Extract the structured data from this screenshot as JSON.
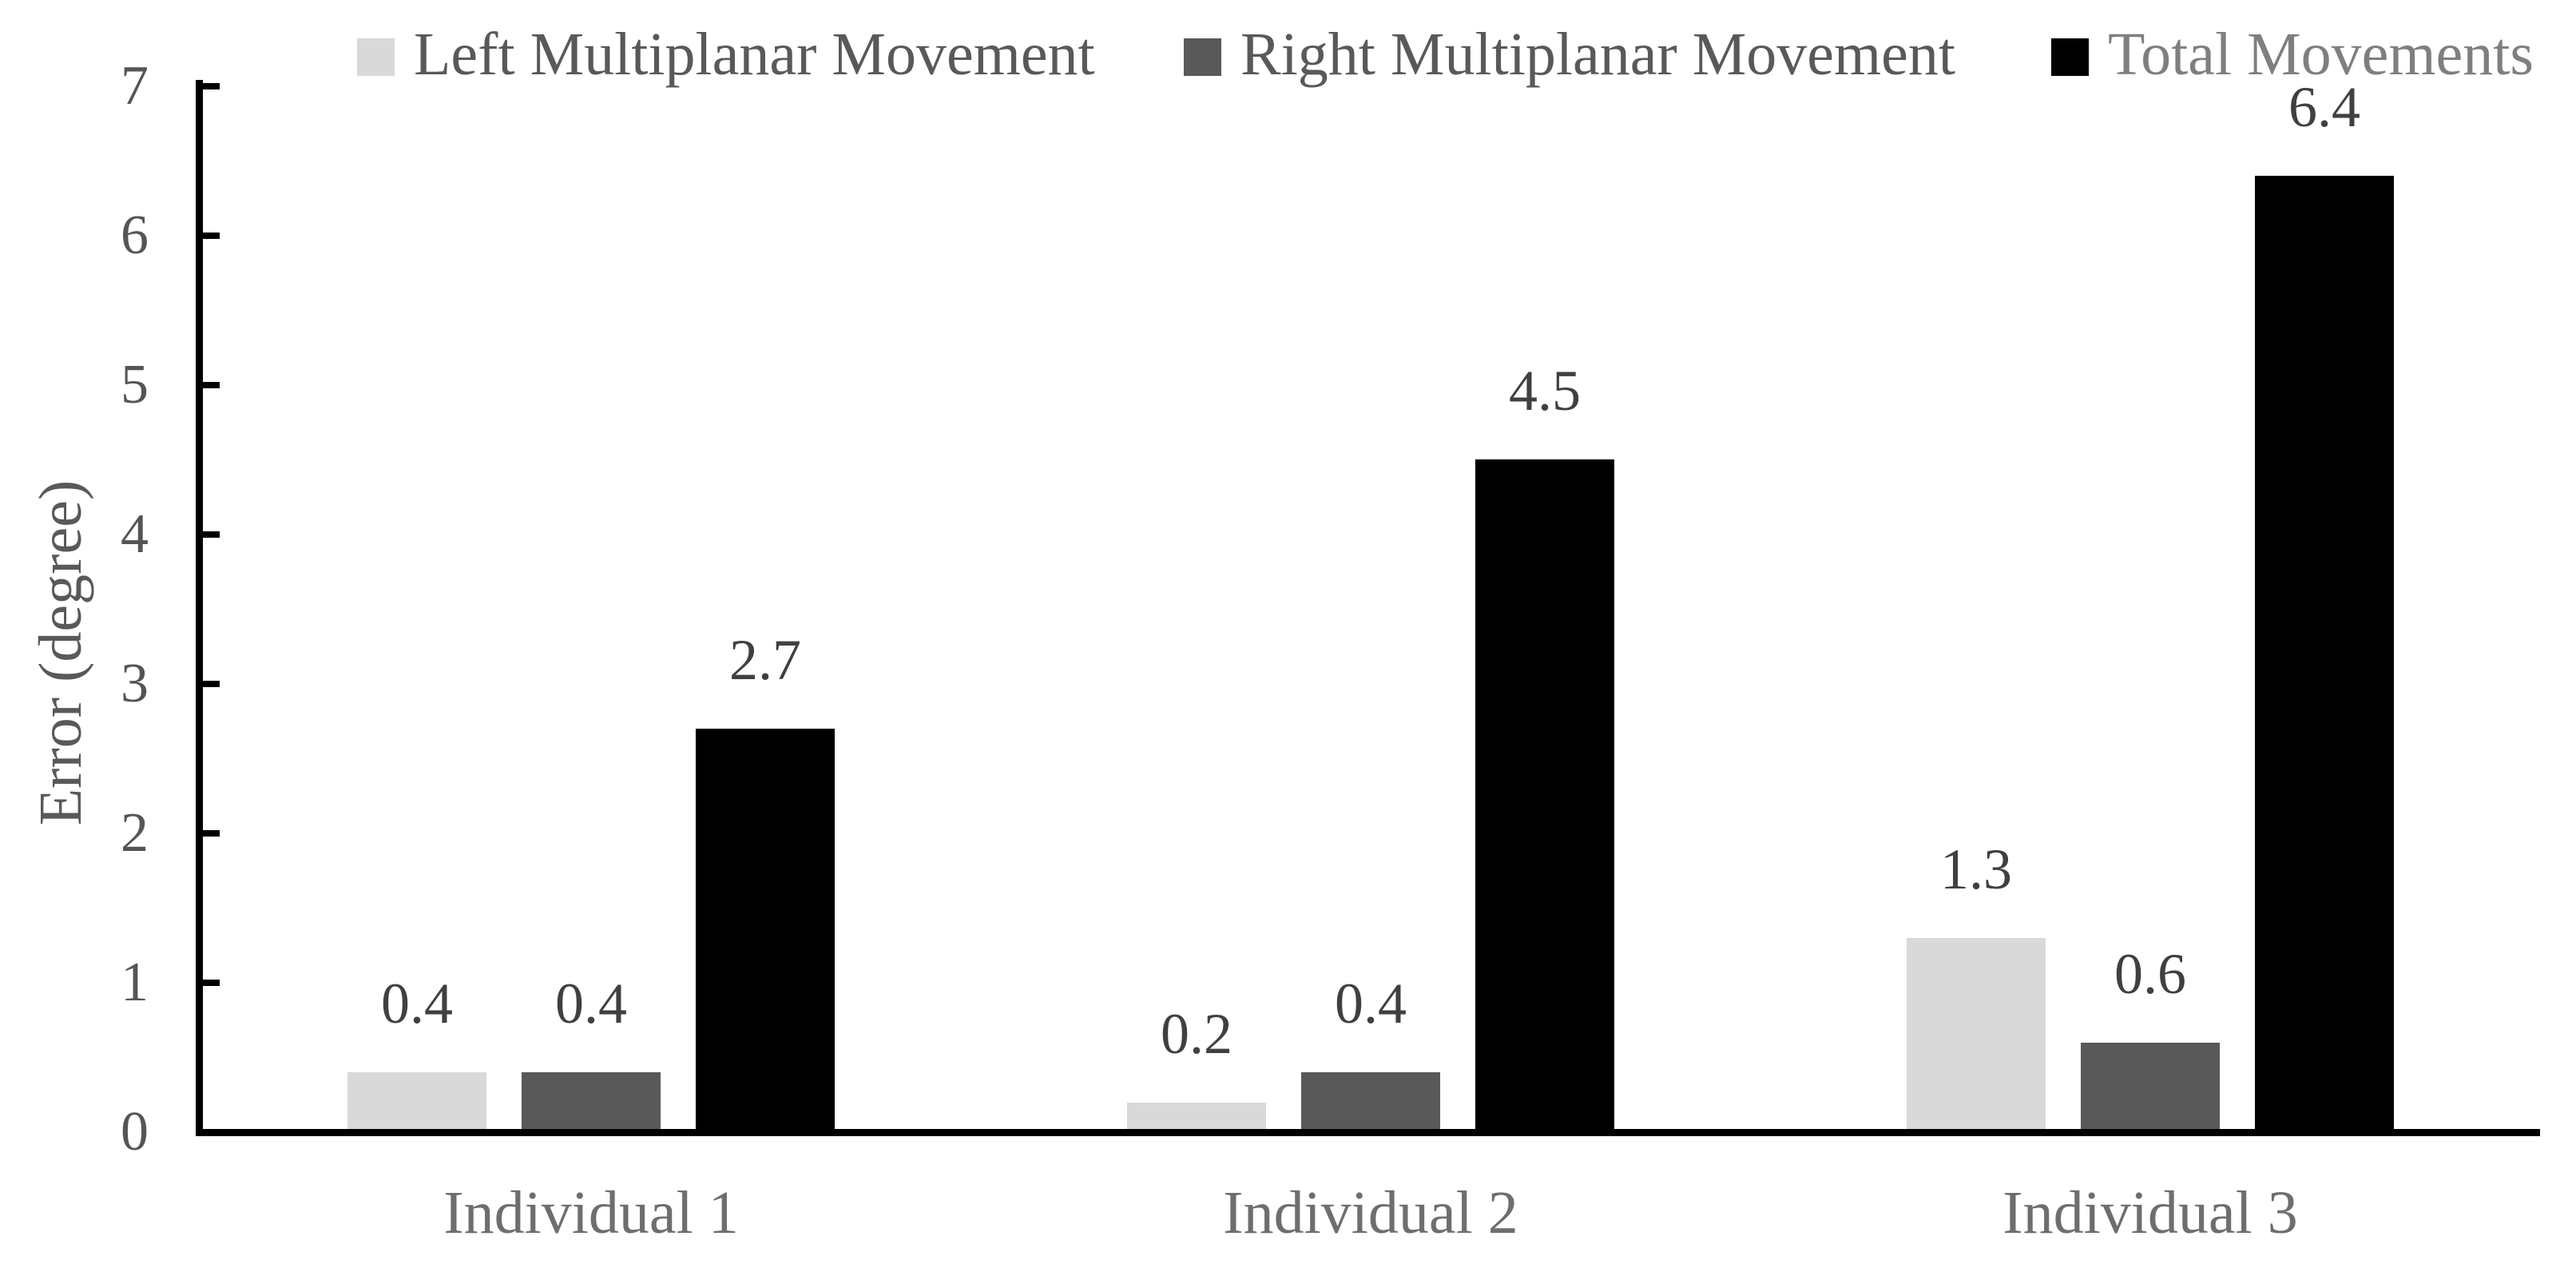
{
  "chart_data": {
    "type": "bar",
    "title": "",
    "xlabel": "",
    "ylabel": "Error (degree)",
    "categories": [
      "Individual 1",
      "Individual 2",
      "Individual 3"
    ],
    "series": [
      {
        "name": "Left Multiplanar Movement",
        "color": "#d9d9d9",
        "legend_text_color": "#595959",
        "values": [
          0.4,
          0.2,
          1.3
        ],
        "labels": [
          "0.4",
          "0.2",
          "1.3"
        ]
      },
      {
        "name": "Right Multiplanar Movement",
        "color": "#595959",
        "legend_text_color": "#595959",
        "values": [
          0.4,
          0.4,
          0.6
        ],
        "labels": [
          "0.4",
          "0.4",
          "0.6"
        ]
      },
      {
        "name": "Total Movements",
        "color": "#000000",
        "legend_text_color": "#7f7f7f",
        "values": [
          2.7,
          4.5,
          6.4
        ],
        "labels": [
          "2.7",
          "4.5",
          "6.4"
        ]
      }
    ],
    "y_ticks": [
      "0",
      "1",
      "2",
      "3",
      "4",
      "5",
      "6",
      "7"
    ],
    "ylim": [
      0,
      7
    ],
    "grid": false,
    "legend_position": "top",
    "style": {
      "axis_color": "#000000",
      "tick_label_color": "#555555",
      "data_label_color": "#404040",
      "category_label_color": "#6e6e6e",
      "axis_title_color": "#595959",
      "background": "#ffffff"
    }
  }
}
